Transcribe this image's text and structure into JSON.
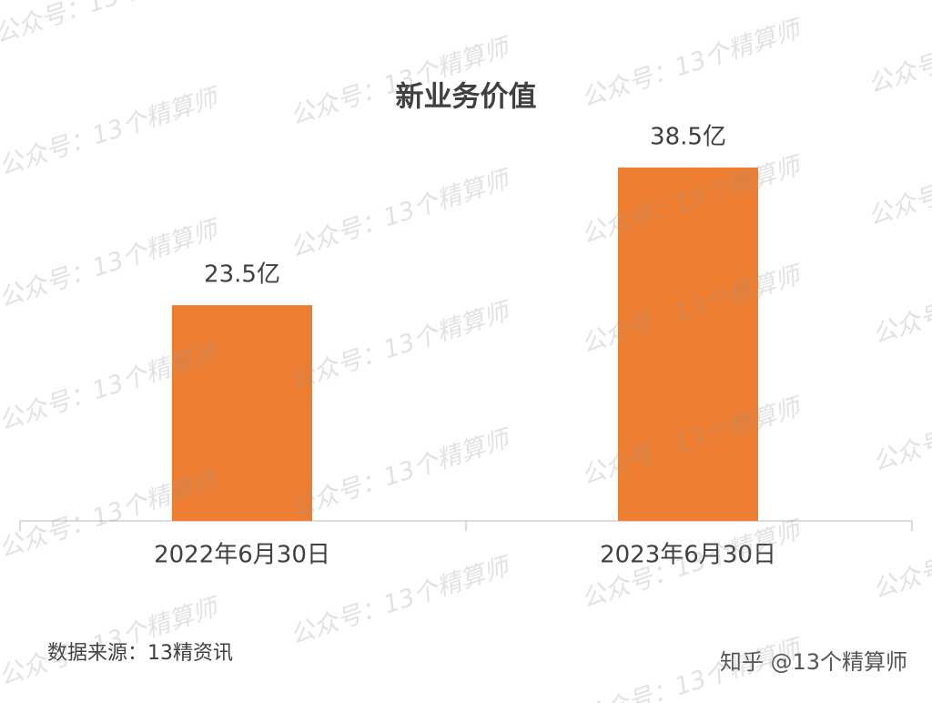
{
  "chart_data": {
    "type": "bar",
    "title": "新业务价值",
    "categories": [
      "2022年6月30日",
      "2023年6月30日"
    ],
    "values": [
      23.5,
      38.5
    ],
    "value_labels": [
      "23.5亿",
      "38.5亿"
    ],
    "color": "#ed7d31",
    "source": "数据来源：13精资讯",
    "credit": "知乎 @13个精算师",
    "watermark": "公众号：13个精算师"
  }
}
